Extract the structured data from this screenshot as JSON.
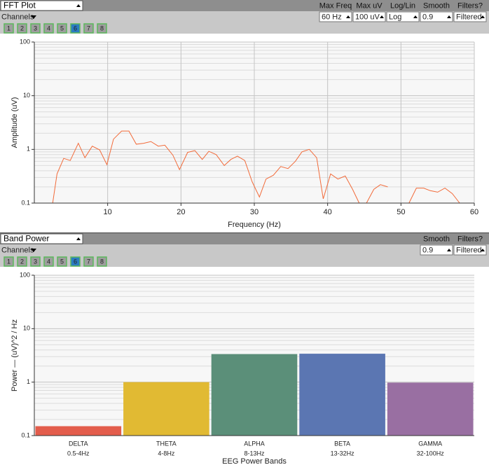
{
  "widgets": [
    {
      "title": "FFT Plot",
      "controls": [
        {
          "label": "Max Freq",
          "value": "60 Hz"
        },
        {
          "label": "Max uV",
          "value": "100 uV"
        },
        {
          "label": "Log/Lin",
          "value": "Log"
        },
        {
          "label": "Smooth",
          "value": "0.9"
        },
        {
          "label": "Filters?",
          "value": "Filtered"
        }
      ],
      "channels_label": "Channels",
      "channels": [
        {
          "label": "1",
          "active": false
        },
        {
          "label": "2",
          "active": false
        },
        {
          "label": "3",
          "active": false
        },
        {
          "label": "4",
          "active": false
        },
        {
          "label": "5",
          "active": false
        },
        {
          "label": "6",
          "active": true
        },
        {
          "label": "7",
          "active": false
        },
        {
          "label": "8",
          "active": false
        }
      ]
    },
    {
      "title": "Band Power",
      "controls": [
        {
          "label": "Smooth",
          "value": "0.9"
        },
        {
          "label": "Filters?",
          "value": "Filtered"
        }
      ],
      "channels_label": "Channels",
      "channels": [
        {
          "label": "1",
          "active": false
        },
        {
          "label": "2",
          "active": false
        },
        {
          "label": "3",
          "active": false
        },
        {
          "label": "4",
          "active": false
        },
        {
          "label": "5",
          "active": false
        },
        {
          "label": "6",
          "active": true
        },
        {
          "label": "7",
          "active": false
        },
        {
          "label": "8",
          "active": false
        }
      ]
    }
  ],
  "chart_data": [
    {
      "type": "line",
      "xlabel": "Frequency (Hz)",
      "ylabel": "Amplitude (uV)",
      "x": [
        2.5,
        3.1,
        4.0,
        4.9,
        6.0,
        6.9,
        7.9,
        8.9,
        9.9,
        10.8,
        11.9,
        12.9,
        13.9,
        14.9,
        15.9,
        16.9,
        17.8,
        18.9,
        19.8,
        20.9,
        21.9,
        22.9,
        23.8,
        24.8,
        25.9,
        26.8,
        27.7,
        28.7,
        29.7,
        30.7,
        31.6,
        32.6,
        33.6,
        34.6,
        35.6,
        36.5,
        37.5,
        38.5,
        39.4,
        40.4,
        41.4,
        42.4,
        43.4,
        44.3,
        45.3,
        46.3,
        47.2,
        48.2,
        49.2,
        50.1,
        51.1,
        52.1,
        53.1,
        54.0,
        55.0,
        56.0,
        57.0,
        58.0
      ],
      "values": [
        0.1,
        0.35,
        0.68,
        0.62,
        1.3,
        0.7,
        1.15,
        0.98,
        0.52,
        1.55,
        2.2,
        2.2,
        1.25,
        1.3,
        1.4,
        1.15,
        1.2,
        0.78,
        0.42,
        0.88,
        0.95,
        0.65,
        0.92,
        0.8,
        0.5,
        0.65,
        0.75,
        0.62,
        0.25,
        0.13,
        0.28,
        0.33,
        0.48,
        0.44,
        0.6,
        0.9,
        1.0,
        0.7,
        0.12,
        0.35,
        0.28,
        0.32,
        0.18,
        0.1,
        0.1,
        0.18,
        0.22,
        0.2,
        null,
        null,
        0.1,
        0.19,
        0.19,
        0.17,
        0.16,
        0.19,
        0.15,
        0.1
      ],
      "color": "#f26b3a",
      "xlim": [
        0,
        60
      ],
      "xticks": [
        10,
        20,
        30,
        40,
        50,
        60
      ],
      "ylim": [
        0.1,
        100
      ],
      "yticks": [
        0.1,
        1,
        10,
        100
      ],
      "log_y": true,
      "grid": true
    },
    {
      "type": "bar",
      "xlabel": "EEG Power Bands",
      "ylabel": "Power — (uV)^2 / Hz",
      "categories": [
        "DELTA",
        "THETA",
        "ALPHA",
        "BETA",
        "GAMMA"
      ],
      "category_ranges": [
        "0.5-4Hz",
        "4-8Hz",
        "8-13Hz",
        "13-32Hz",
        "32-100Hz"
      ],
      "values": [
        0.15,
        1.0,
        3.35,
        3.4,
        0.98
      ],
      "colors": [
        "#e35d4c",
        "#e1ba33",
        "#5b8f79",
        "#5b76b2",
        "#996fa2"
      ],
      "ylim": [
        0.1,
        100
      ],
      "yticks": [
        0.1,
        1,
        10,
        100
      ],
      "log_y": true,
      "grid": true
    }
  ]
}
